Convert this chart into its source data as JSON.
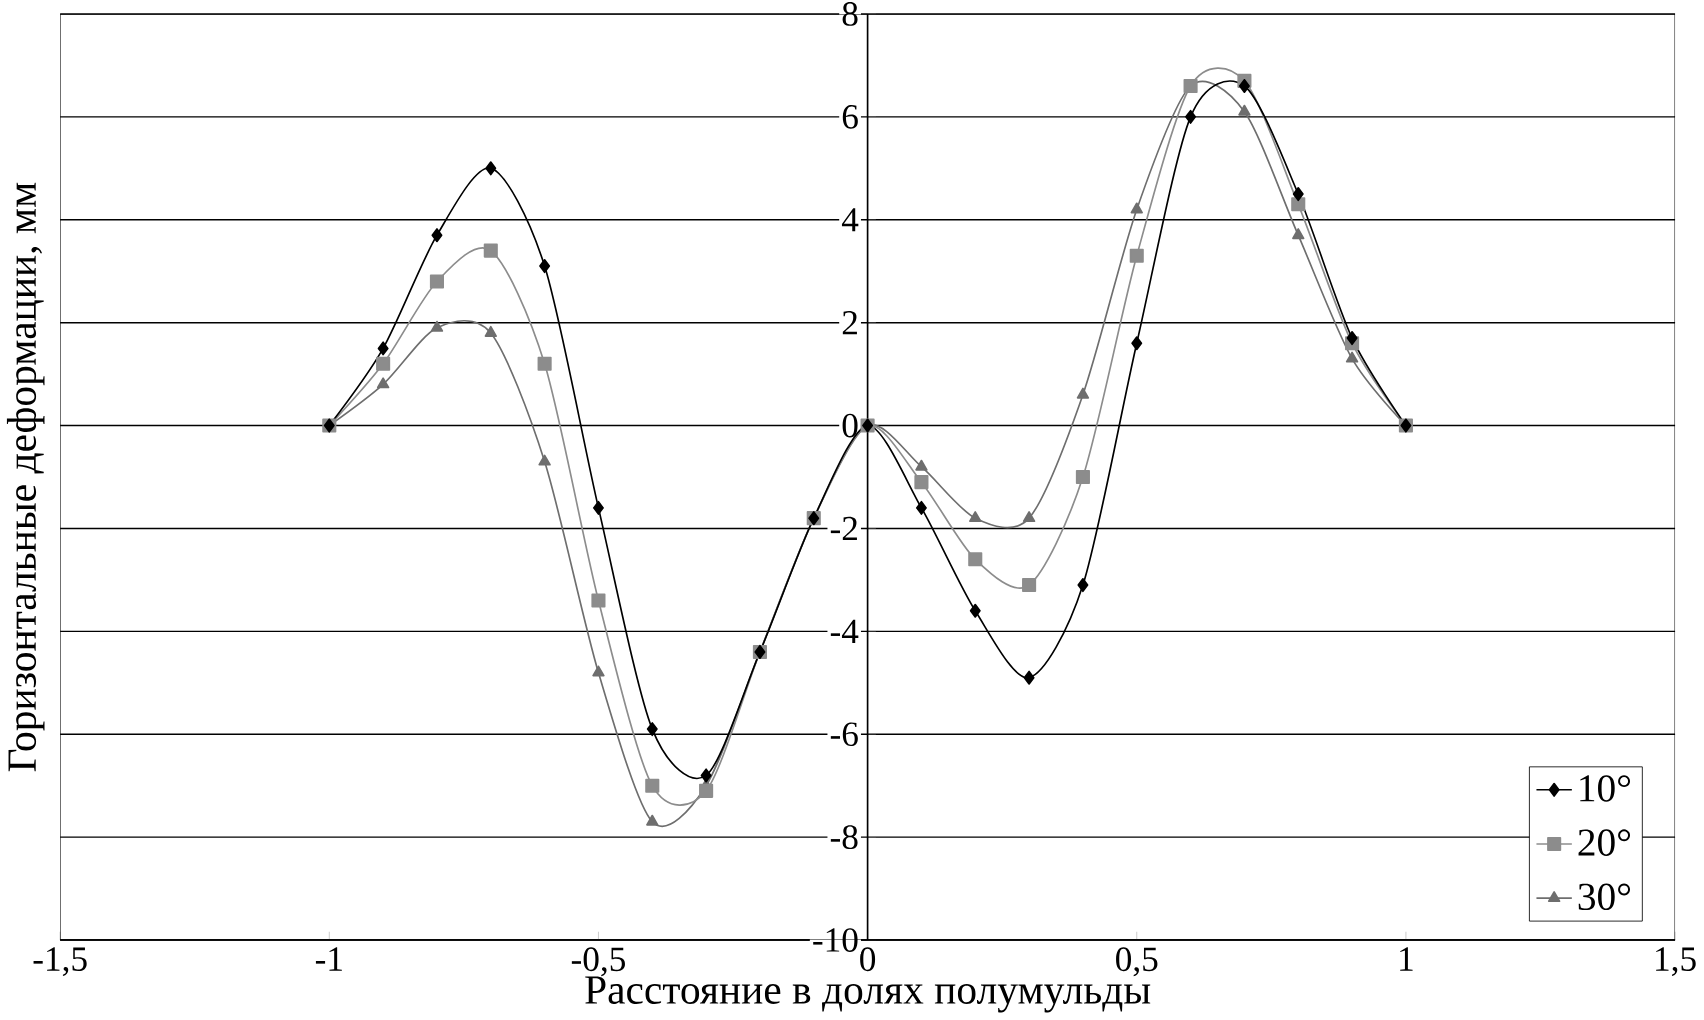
{
  "chart_data": {
    "type": "line",
    "xlabel": "Расстояние в долях полумульды",
    "ylabel": "Горизонтальные деформации, мм",
    "x": [
      -1,
      -0.9,
      -0.8,
      -0.7,
      -0.6,
      -0.5,
      -0.4,
      -0.3,
      -0.2,
      -0.1,
      0,
      0.1,
      0.2,
      0.3,
      0.4,
      0.5,
      0.6,
      0.7,
      0.8,
      0.9,
      1
    ],
    "series": [
      {
        "name": "10°",
        "color": "#000000",
        "marker": "diamond",
        "values": [
          0,
          1.5,
          3.7,
          5.0,
          3.1,
          -1.6,
          -5.9,
          -6.8,
          -4.4,
          -1.8,
          0,
          -1.6,
          -3.6,
          -4.9,
          -3.1,
          1.6,
          6.0,
          6.6,
          4.5,
          1.7,
          0
        ]
      },
      {
        "name": "20°",
        "color": "#8c8c8c",
        "marker": "square",
        "values": [
          0,
          1.2,
          2.8,
          3.4,
          1.2,
          -3.4,
          -7.0,
          -7.1,
          -4.4,
          -1.8,
          0,
          -1.1,
          -2.6,
          -3.1,
          -1.0,
          3.3,
          6.6,
          6.7,
          4.3,
          1.6,
          0
        ]
      },
      {
        "name": "30°",
        "color": "#6e6e6e",
        "marker": "triangle",
        "values": [
          0,
          0.8,
          1.9,
          1.8,
          -0.7,
          -4.8,
          -7.7,
          -7.0,
          -4.4,
          -1.8,
          0,
          -0.8,
          -1.8,
          -1.8,
          0.6,
          4.2,
          6.6,
          6.1,
          3.7,
          1.3,
          0
        ]
      }
    ],
    "xlim": [
      -1.5,
      1.5
    ],
    "xticks": [
      {
        "value": -1.5,
        "label": "-1,5"
      },
      -1,
      {
        "value": -0.5,
        "label": "-0,5"
      },
      0,
      {
        "value": 0.5,
        "label": "0,5"
      },
      1,
      {
        "value": 1.5,
        "label": "1,5"
      }
    ],
    "ylim": [
      -10,
      8
    ],
    "yticks": [
      -10,
      -8,
      -6,
      -4,
      -2,
      0,
      2,
      4,
      6,
      8
    ],
    "grid": "y",
    "legend": "bottom right",
    "line_style": "solid"
  }
}
